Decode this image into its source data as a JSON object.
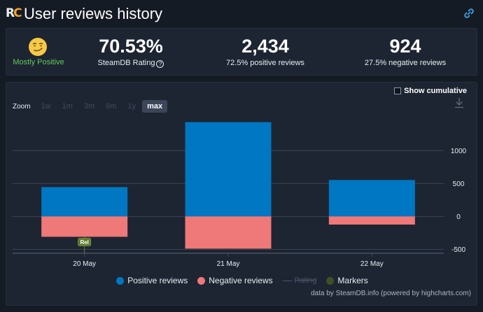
{
  "header": {
    "logo_part1": "R",
    "logo_part2": "C",
    "title": "User reviews history",
    "link_icon": "link-icon"
  },
  "summary": {
    "verdict": "Mostly Positive",
    "verdict_icon": "smirk-emoji-icon",
    "rating_value": "70.53%",
    "rating_label": "SteamDB Rating",
    "help_symbol": "?",
    "positive_value": "2,434",
    "positive_label": "72.5% positive reviews",
    "negative_value": "924",
    "negative_label": "27.5% negative reviews",
    "colors": {
      "verdict": "#66c95a"
    }
  },
  "controls": {
    "show_cumulative": "Show cumulative",
    "cumulative_checked": false,
    "zoom_label": "Zoom",
    "zoom_options": [
      "1w",
      "1m",
      "3m",
      "6m",
      "1y",
      "max"
    ],
    "zoom_selected": "max",
    "download_icon": "download-icon"
  },
  "chart_data": {
    "type": "bar",
    "categories": [
      "20 May",
      "21 May",
      "22 May"
    ],
    "series": [
      {
        "name": "Positive reviews",
        "values": [
          446,
          1434,
          554
        ],
        "color": "#0077c2"
      },
      {
        "name": "Negative reviews",
        "values": [
          -310,
          -490,
          -124
        ],
        "color": "#ef7878"
      }
    ],
    "ylim": [
      -560,
      1440
    ],
    "yticks": [
      1000,
      500,
      0,
      -500
    ],
    "ytick_labels": [
      "1000",
      "500",
      "0",
      "-500"
    ],
    "marker": {
      "label": "Rel",
      "category": "20 May",
      "color": "#5b7a2a"
    },
    "legend": {
      "positive": "Positive reviews",
      "negative": "Negative reviews",
      "rating": "Rating",
      "markers": "Markers",
      "placement": "bottom-center"
    },
    "credits": "data by SteamDB.info (powered by highcharts.com)"
  }
}
